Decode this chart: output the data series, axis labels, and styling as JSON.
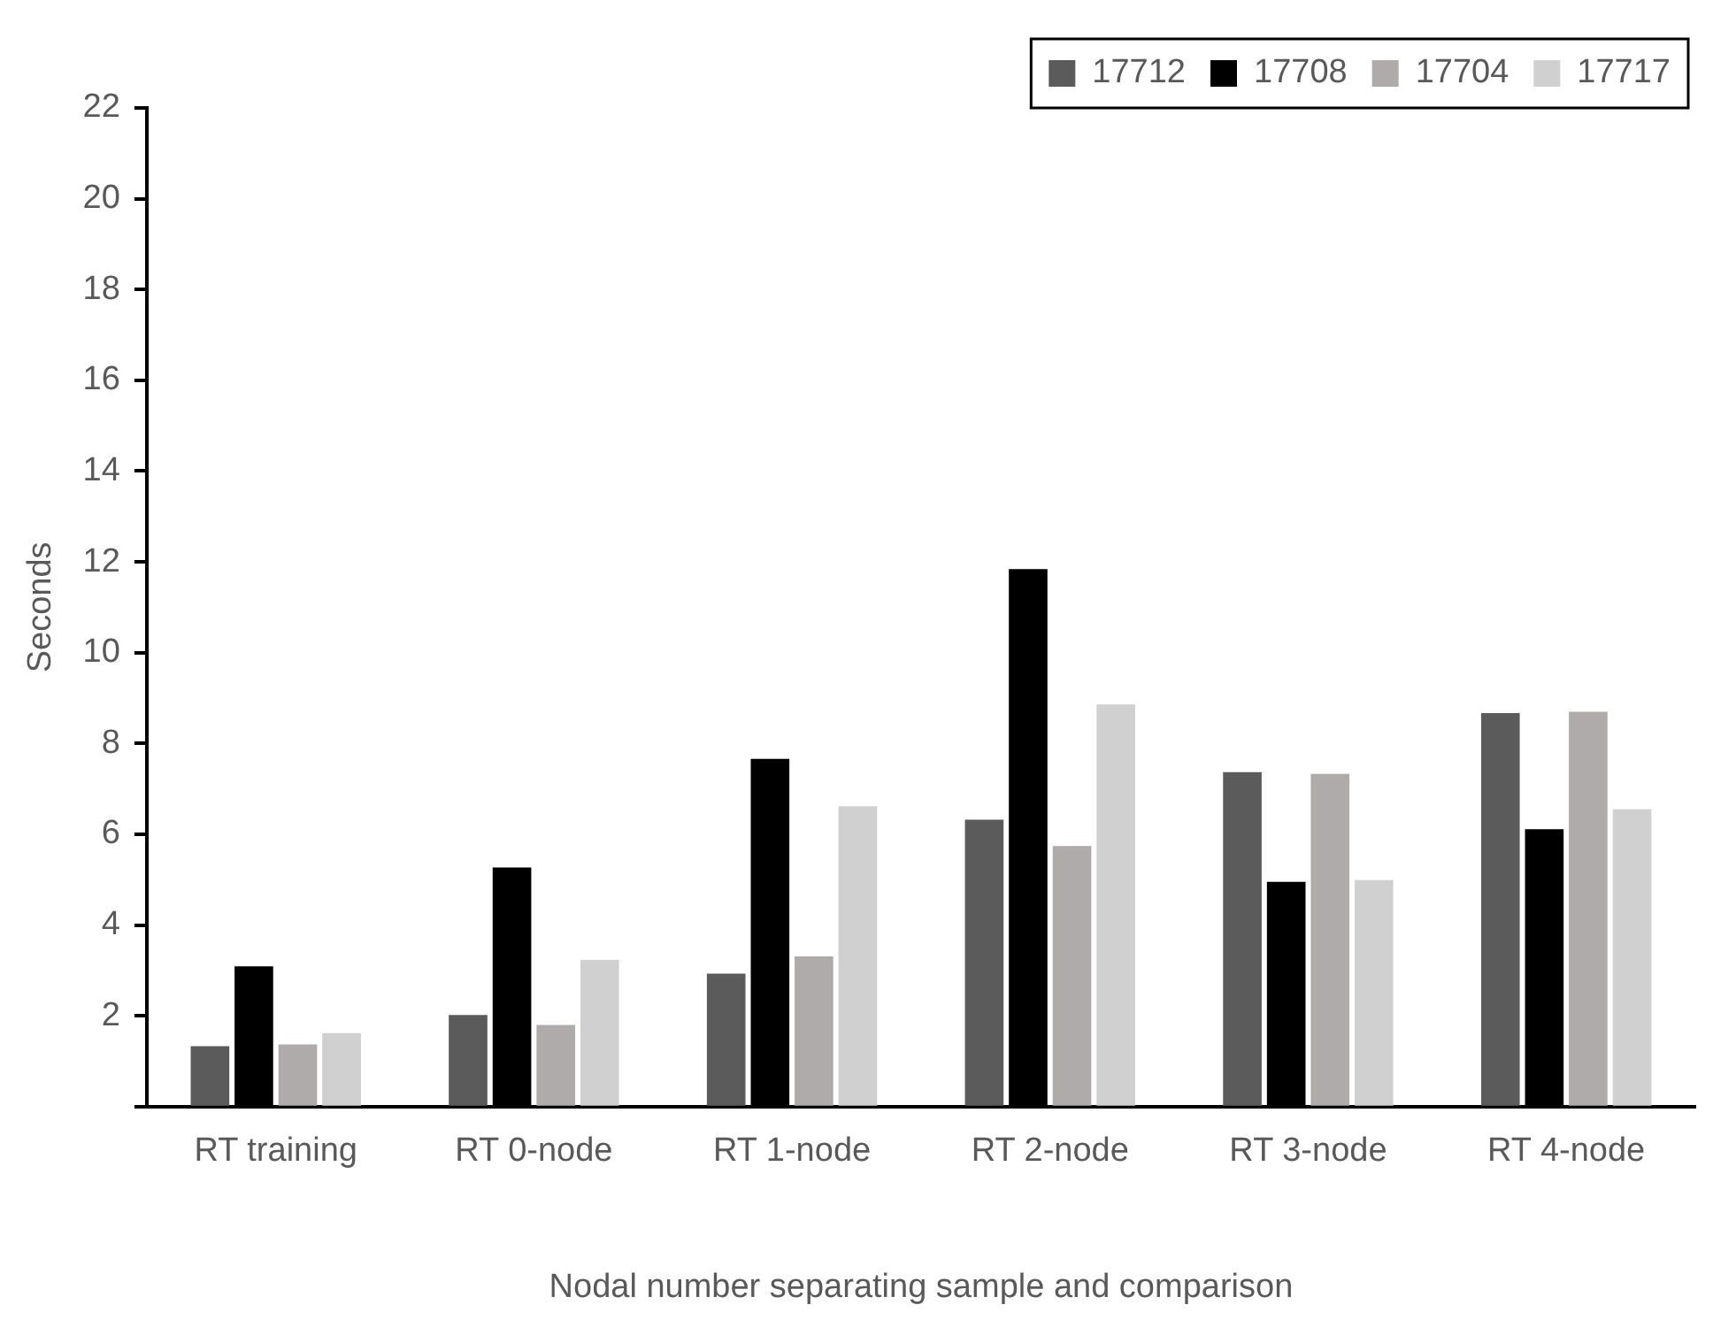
{
  "chart_data": {
    "type": "bar",
    "xlabel": "Nodal number separating sample and comparison",
    "ylabel": "Seconds",
    "categories": [
      "RT training",
      "RT 0-node",
      "RT 1-node",
      "RT 2-node",
      "RT 3-node",
      "RT 4-node"
    ],
    "series": [
      {
        "name": "17712",
        "color": "#5b5b5b",
        "values": [
          1.33,
          2.02,
          2.93,
          6.32,
          7.37,
          8.67
        ]
      },
      {
        "name": "17708",
        "color": "#000000",
        "values": [
          3.09,
          5.27,
          7.66,
          11.84,
          4.95,
          6.11
        ]
      },
      {
        "name": "17704",
        "color": "#afabaa",
        "values": [
          1.37,
          1.8,
          3.31,
          5.74,
          7.33,
          8.7
        ]
      },
      {
        "name": "17717",
        "color": "#d0d0d0",
        "values": [
          1.62,
          3.23,
          6.62,
          8.86,
          4.99,
          6.55
        ]
      }
    ],
    "ylim": [
      0,
      22
    ],
    "yticks": [
      {
        "value": 0,
        "label": null
      },
      2,
      4,
      6,
      8,
      10,
      12,
      14,
      16,
      18,
      20,
      22
    ],
    "grid": false,
    "legend": "top right"
  }
}
